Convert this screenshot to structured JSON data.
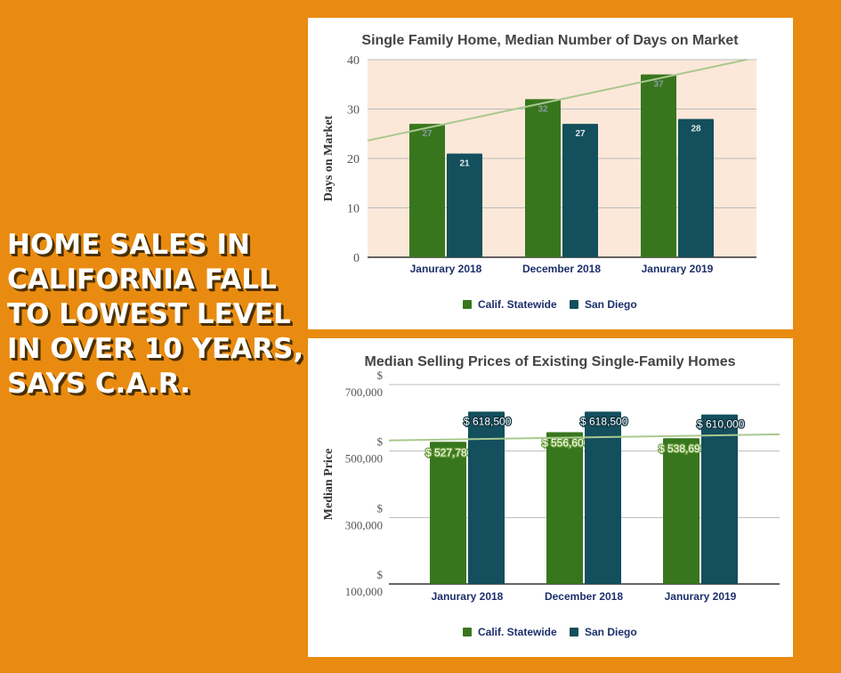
{
  "headline": "Home Sales in California Fall to Lowest Level in Over 10 Years, Says C.A.R.",
  "chart_data": [
    {
      "type": "bar",
      "title": "Single Family Home, Median Number of Days on Market",
      "ylabel": "Days on Market",
      "xlabel": "",
      "categories": [
        "Janurary 2018",
        "December 2018",
        "Janurary 2019"
      ],
      "series": [
        {
          "name": "Calif. Statewide",
          "values": [
            27,
            32,
            37
          ],
          "color": "#38761d"
        },
        {
          "name": "San Diego",
          "values": [
            21,
            27,
            28
          ],
          "color": "#134f5c"
        }
      ],
      "data_labels": [
        [
          "27",
          "32",
          "37"
        ],
        [
          "21",
          "27",
          "28"
        ]
      ],
      "yticks": [
        "0",
        "10",
        "20",
        "30",
        "40"
      ],
      "ylim": [
        0,
        40
      ],
      "trendline": {
        "series": "Calif. Statewide",
        "color": "#a9c98f"
      },
      "plot_background": "#fce8d9",
      "grid": true,
      "legend": "bottom"
    },
    {
      "type": "bar",
      "title": "Median Selling Prices of Existing Single-Family Homes",
      "ylabel": "Median Price",
      "xlabel": "",
      "categories": [
        "Janurary 2018",
        "December 2018",
        "Janurary 2019"
      ],
      "series": [
        {
          "name": "Calif. Statewide",
          "values": [
            527780,
            556600,
            538690
          ],
          "color": "#38761d"
        },
        {
          "name": "San Diego",
          "values": [
            618500,
            618500,
            610000
          ],
          "color": "#134f5c"
        }
      ],
      "data_labels": [
        [
          "$ 527,780",
          "$ 556,600",
          "$ 538,690"
        ],
        [
          "$ 618,500",
          "$ 618,500",
          "$ 610,000"
        ]
      ],
      "yticks": [
        "$ 100,000",
        "$ 300,000",
        "$ 500,000",
        "$ 700,000"
      ],
      "ylim": [
        100000,
        700000
      ],
      "trendline": {
        "series": "Calif. Statewide",
        "color": "#a9c98f"
      },
      "grid": true,
      "legend": "bottom"
    }
  ]
}
